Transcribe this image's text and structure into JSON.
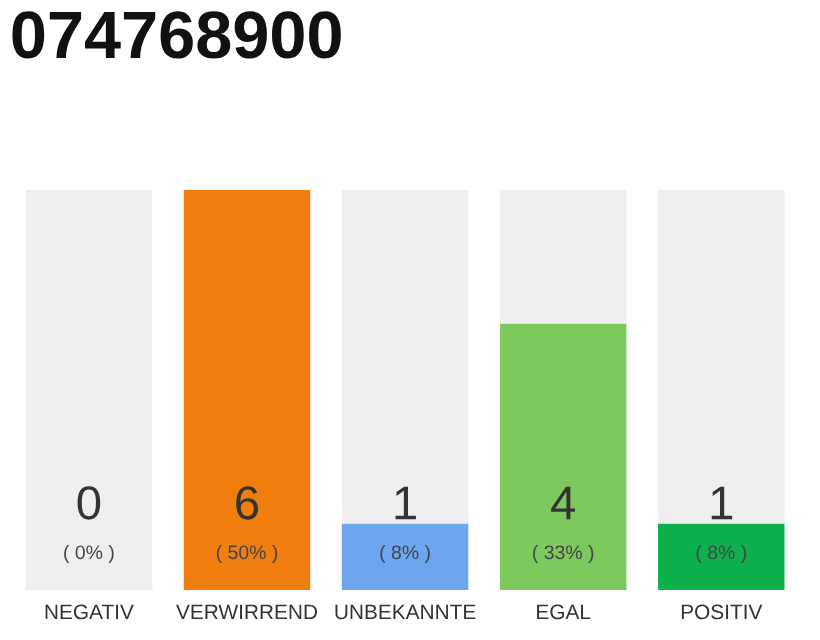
{
  "chart_data": {
    "type": "bar",
    "title": "074768900",
    "stacked": true,
    "categories": [
      "NEGATIV",
      "VERWIRREND",
      "UNBEKANNTE",
      "EGAL",
      "POSITIV"
    ],
    "series": [
      {
        "colors": [
          "#555555",
          "#f07e0e",
          "#6ea5f0",
          "#7dc95e",
          "#0db04b"
        ],
        "values": [
          0,
          6,
          1,
          4,
          1
        ],
        "value_labels": [
          "0\n( 0% )",
          "6\n( 50% )",
          "1\n( 8% )",
          "4\n( 33% )",
          "1\n( 8% )"
        ]
      },
      {
        "color": "#efefef",
        "values": [
          6,
          0,
          5,
          2,
          5
        ]
      }
    ],
    "grid": false,
    "legend": false
  }
}
